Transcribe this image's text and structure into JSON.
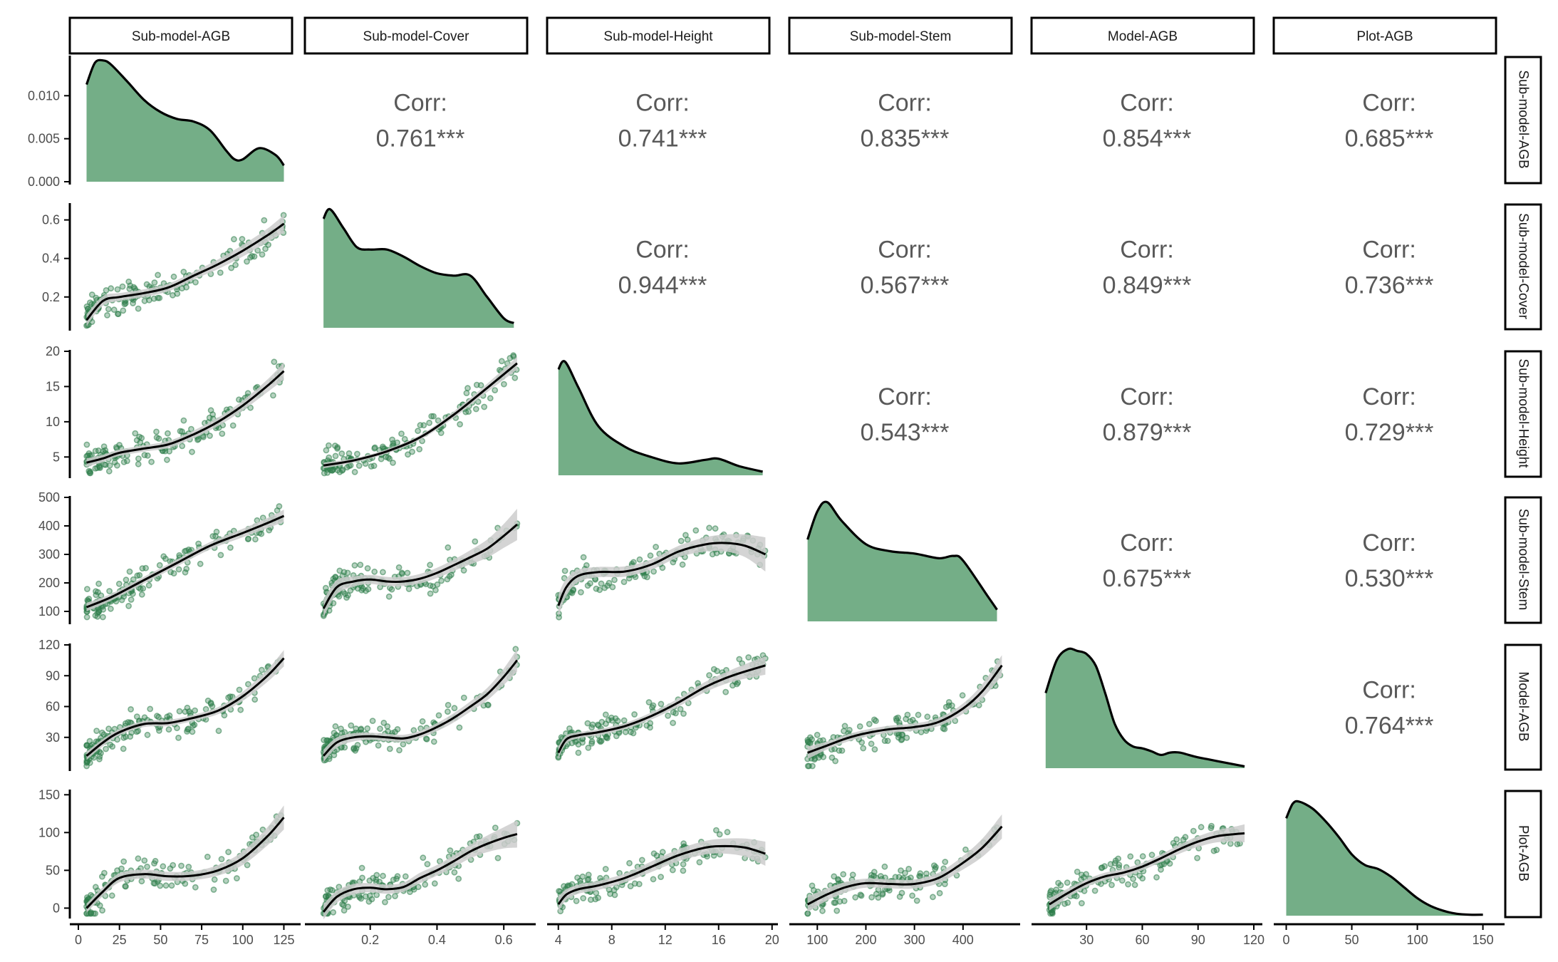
{
  "variables": [
    "Sub-model-AGB",
    "Sub-model-Cover",
    "Sub-model-Height",
    "Sub-model-Stem",
    "Model-AGB",
    "Plot-AGB"
  ],
  "colors": {
    "point": "#2e7d4a",
    "density_fill": "#74ae87",
    "line": "#000000",
    "ribbon": "#cccccc",
    "text": "#595959",
    "axis": "#000000"
  },
  "chart_data": {
    "type": "scatter",
    "layout": "pairs-matrix",
    "lower": "scatter with loess smooth and confidence band",
    "diagonal": "density",
    "upper": "correlation coefficient",
    "corr_label": "Corr:",
    "correlations": [
      {
        "row": "Sub-model-AGB",
        "col": "Sub-model-Cover",
        "text": "0.761***"
      },
      {
        "row": "Sub-model-AGB",
        "col": "Sub-model-Height",
        "text": "0.741***"
      },
      {
        "row": "Sub-model-AGB",
        "col": "Sub-model-Stem",
        "text": "0.835***"
      },
      {
        "row": "Sub-model-AGB",
        "col": "Model-AGB",
        "text": "0.854***"
      },
      {
        "row": "Sub-model-AGB",
        "col": "Plot-AGB",
        "text": "0.685***"
      },
      {
        "row": "Sub-model-Cover",
        "col": "Sub-model-Height",
        "text": "0.944***"
      },
      {
        "row": "Sub-model-Cover",
        "col": "Sub-model-Stem",
        "text": "0.567***"
      },
      {
        "row": "Sub-model-Cover",
        "col": "Model-AGB",
        "text": "0.849***"
      },
      {
        "row": "Sub-model-Cover",
        "col": "Plot-AGB",
        "text": "0.736***"
      },
      {
        "row": "Sub-model-Height",
        "col": "Sub-model-Stem",
        "text": "0.543***"
      },
      {
        "row": "Sub-model-Height",
        "col": "Model-AGB",
        "text": "0.879***"
      },
      {
        "row": "Sub-model-Height",
        "col": "Plot-AGB",
        "text": "0.729***"
      },
      {
        "row": "Sub-model-Stem",
        "col": "Model-AGB",
        "text": "0.675***"
      },
      {
        "row": "Sub-model-Stem",
        "col": "Plot-AGB",
        "text": "0.530***"
      },
      {
        "row": "Model-AGB",
        "col": "Plot-AGB",
        "text": "0.764***"
      }
    ],
    "x_axes": [
      {
        "variable": "Sub-model-AGB",
        "range": [
          0,
          130
        ],
        "ticks": [
          0,
          25,
          50,
          75,
          100,
          125
        ]
      },
      {
        "variable": "Sub-model-Cover",
        "range": [
          0.03,
          0.67
        ],
        "ticks": [
          0.2,
          0.4,
          0.6
        ]
      },
      {
        "variable": "Sub-model-Height",
        "range": [
          3.8,
          19.8
        ],
        "ticks": [
          4,
          8,
          12,
          16,
          20
        ]
      },
      {
        "variable": "Sub-model-Stem",
        "range": [
          60,
          500
        ],
        "ticks": [
          100,
          200,
          300,
          400
        ]
      },
      {
        "variable": "Model-AGB",
        "range": [
          5,
          120
        ],
        "ticks": [
          30,
          60,
          90,
          120
        ]
      },
      {
        "variable": "Plot-AGB",
        "range": [
          -3,
          160
        ],
        "ticks": [
          0,
          50,
          100,
          150
        ]
      }
    ],
    "y_axes": [
      {
        "variable": "Sub-model-AGB",
        "range": [
          0,
          0.0145
        ],
        "ticks": [
          0.0,
          0.005,
          0.01
        ],
        "tick_labels": [
          "0.000",
          "0.005",
          "0.010"
        ]
      },
      {
        "variable": "Sub-model-Cover",
        "range": [
          0.04,
          0.68
        ],
        "ticks": [
          0.2,
          0.4,
          0.6
        ]
      },
      {
        "variable": "Sub-model-Height",
        "range": [
          2.4,
          20
        ],
        "ticks": [
          5,
          10,
          15,
          20
        ]
      },
      {
        "variable": "Sub-model-Stem",
        "range": [
          65,
          500
        ],
        "ticks": [
          100,
          200,
          300,
          400,
          500
        ]
      },
      {
        "variable": "Model-AGB",
        "range": [
          0,
          120
        ],
        "ticks": [
          30,
          60,
          90,
          120
        ]
      },
      {
        "variable": "Plot-AGB",
        "range": [
          -10,
          155
        ],
        "ticks": [
          0,
          50,
          100,
          150
        ]
      }
    ],
    "densities": [
      {
        "variable": "Sub-model-AGB",
        "y_range": [
          0,
          0.0145
        ],
        "x": [
          5,
          10,
          15,
          20,
          30,
          40,
          50,
          60,
          70,
          80,
          90,
          95,
          100,
          110,
          120,
          125
        ],
        "y": [
          0.0113,
          0.0138,
          0.0141,
          0.0136,
          0.0116,
          0.0095,
          0.0081,
          0.0073,
          0.007,
          0.006,
          0.0036,
          0.0026,
          0.0026,
          0.0039,
          0.0031,
          0.0019
        ]
      },
      {
        "variable": "Sub-model-Cover",
        "y_range": [
          0,
          5.2
        ],
        "x": [
          0.06,
          0.08,
          0.12,
          0.16,
          0.2,
          0.25,
          0.3,
          0.35,
          0.4,
          0.45,
          0.5,
          0.55,
          0.6,
          0.63
        ],
        "y": [
          4.6,
          5.0,
          4.2,
          3.4,
          3.3,
          3.3,
          3.0,
          2.6,
          2.3,
          2.2,
          2.2,
          1.3,
          0.4,
          0.2
        ]
      },
      {
        "variable": "Sub-model-Height",
        "y_range": [
          0,
          0.24
        ],
        "x": [
          4,
          4.5,
          5.5,
          7,
          9,
          11,
          13,
          15,
          16,
          17.5,
          19.3
        ],
        "y": [
          0.205,
          0.22,
          0.17,
          0.095,
          0.055,
          0.035,
          0.023,
          0.03,
          0.032,
          0.018,
          0.007
        ]
      },
      {
        "variable": "Sub-model-Stem",
        "y_range": [
          0,
          0.0053
        ],
        "x": [
          80,
          100,
          120,
          150,
          200,
          250,
          300,
          350,
          380,
          400,
          450,
          470
        ],
        "y": [
          0.0035,
          0.0047,
          0.0051,
          0.0043,
          0.0033,
          0.003,
          0.0029,
          0.0027,
          0.0028,
          0.0026,
          0.0011,
          0.0005
        ]
      },
      {
        "variable": "Model-AGB",
        "y_range": [
          0,
          0.0205
        ],
        "x": [
          8,
          14,
          20,
          25,
          30,
          35,
          40,
          45,
          50,
          55,
          60,
          65,
          70,
          75,
          80,
          85,
          90,
          95,
          100,
          110,
          115
        ],
        "y": [
          0.0125,
          0.018,
          0.0198,
          0.0195,
          0.019,
          0.017,
          0.0125,
          0.0075,
          0.0048,
          0.0036,
          0.0033,
          0.0028,
          0.0022,
          0.0026,
          0.0026,
          0.0022,
          0.0018,
          0.0015,
          0.0012,
          0.0006,
          0.0003
        ]
      },
      {
        "variable": "Plot-AGB",
        "y_range": [
          0,
          0.0128
        ],
        "x": [
          0,
          5,
          10,
          20,
          30,
          40,
          50,
          60,
          70,
          80,
          90,
          100,
          110,
          120,
          130,
          140,
          150
        ],
        "y": [
          0.01,
          0.0115,
          0.0117,
          0.011,
          0.0097,
          0.0081,
          0.0063,
          0.0052,
          0.0048,
          0.004,
          0.0029,
          0.0018,
          0.001,
          0.0005,
          0.0002,
          0.0001,
          0.0001
        ]
      }
    ],
    "smooths": [
      {
        "row": "Sub-model-Cover",
        "col": "Sub-model-AGB",
        "x": [
          5,
          15,
          25,
          40,
          55,
          70,
          85,
          100,
          115,
          125
        ],
        "y": [
          0.08,
          0.18,
          0.2,
          0.22,
          0.25,
          0.31,
          0.37,
          0.44,
          0.52,
          0.58
        ],
        "se": [
          0.03,
          0.025,
          0.02,
          0.02,
          0.02,
          0.02,
          0.025,
          0.03,
          0.035,
          0.045
        ]
      },
      {
        "row": "Sub-model-Height",
        "col": "Sub-model-AGB",
        "x": [
          5,
          15,
          25,
          40,
          55,
          70,
          85,
          100,
          115,
          125
        ],
        "y": [
          4.2,
          4.8,
          5.6,
          6.2,
          6.8,
          8.2,
          10.0,
          12.3,
          15.1,
          17.2
        ],
        "se": [
          0.6,
          0.5,
          0.45,
          0.45,
          0.5,
          0.55,
          0.6,
          0.7,
          0.9,
          1.2
        ]
      },
      {
        "row": "Sub-model-Stem",
        "col": "Sub-model-AGB",
        "x": [
          5,
          20,
          40,
          60,
          80,
          100,
          115,
          125
        ],
        "y": [
          115,
          150,
          210,
          270,
          330,
          375,
          410,
          435
        ],
        "se": [
          15,
          12,
          12,
          12,
          13,
          15,
          18,
          22
        ]
      },
      {
        "row": "Model-AGB",
        "col": "Sub-model-AGB",
        "x": [
          5,
          15,
          25,
          40,
          55,
          70,
          85,
          100,
          115,
          125
        ],
        "y": [
          12,
          25,
          35,
          43,
          44,
          49,
          56,
          70,
          90,
          107
        ],
        "se": [
          4,
          3.5,
          3,
          3,
          3,
          3,
          3.5,
          4.5,
          6,
          8
        ]
      },
      {
        "row": "Plot-AGB",
        "col": "Sub-model-AGB",
        "x": [
          5,
          15,
          25,
          40,
          55,
          70,
          85,
          100,
          115,
          125
        ],
        "y": [
          0,
          22,
          40,
          45,
          42,
          43,
          50,
          66,
          95,
          120
        ],
        "se": [
          6,
          6,
          6,
          6,
          6,
          6,
          7,
          9,
          12,
          16
        ]
      },
      {
        "row": "Sub-model-Height",
        "col": "Sub-model-Cover",
        "x": [
          0.06,
          0.15,
          0.25,
          0.35,
          0.45,
          0.55,
          0.64
        ],
        "y": [
          3.8,
          4.5,
          5.8,
          7.8,
          11.0,
          14.8,
          18.3
        ],
        "se": [
          0.4,
          0.3,
          0.3,
          0.35,
          0.45,
          0.6,
          0.9
        ]
      },
      {
        "row": "Sub-model-Stem",
        "col": "Sub-model-Cover",
        "x": [
          0.06,
          0.1,
          0.15,
          0.2,
          0.25,
          0.3,
          0.35,
          0.4,
          0.45,
          0.5,
          0.55,
          0.6,
          0.64
        ],
        "y": [
          110,
          185,
          205,
          212,
          205,
          205,
          215,
          235,
          262,
          290,
          320,
          365,
          405
        ],
        "se": [
          30,
          25,
          18,
          16,
          16,
          16,
          17,
          18,
          20,
          25,
          32,
          42,
          55
        ]
      },
      {
        "row": "Model-AGB",
        "col": "Sub-model-Cover",
        "x": [
          0.06,
          0.1,
          0.15,
          0.2,
          0.25,
          0.3,
          0.35,
          0.4,
          0.45,
          0.5,
          0.55,
          0.6,
          0.64
        ],
        "y": [
          12,
          25,
          30,
          31,
          30,
          29,
          33,
          40,
          49,
          60,
          72,
          89,
          105
        ],
        "se": [
          6,
          5,
          4,
          3.5,
          3.5,
          3.5,
          3.5,
          4,
          4.5,
          5,
          6,
          8,
          11
        ]
      },
      {
        "row": "Plot-AGB",
        "col": "Sub-model-Cover",
        "x": [
          0.06,
          0.1,
          0.15,
          0.2,
          0.25,
          0.3,
          0.35,
          0.4,
          0.45,
          0.5,
          0.55,
          0.6,
          0.64
        ],
        "y": [
          -5,
          15,
          25,
          27,
          25,
          28,
          40,
          50,
          62,
          75,
          85,
          93,
          98
        ],
        "se": [
          10,
          8,
          7,
          6,
          6,
          6,
          7,
          7,
          8,
          9,
          11,
          14,
          18
        ]
      },
      {
        "row": "Sub-model-Stem",
        "col": "Sub-model-Height",
        "x": [
          4,
          4.6,
          5.5,
          7,
          9,
          11,
          13,
          15,
          16.5,
          18,
          19.5
        ],
        "y": [
          120,
          185,
          225,
          238,
          240,
          265,
          310,
          335,
          340,
          330,
          300
        ],
        "se": [
          40,
          30,
          22,
          18,
          18,
          18,
          20,
          25,
          30,
          40,
          60
        ]
      },
      {
        "row": "Model-AGB",
        "col": "Sub-model-Height",
        "x": [
          4,
          4.6,
          5.5,
          7,
          9,
          11,
          13,
          15,
          17,
          19.5
        ],
        "y": [
          15,
          28,
          32,
          35,
          41,
          51,
          64,
          79,
          90,
          100
        ],
        "se": [
          6,
          4,
          3,
          3,
          3,
          3.5,
          4,
          5,
          6,
          9
        ]
      },
      {
        "row": "Plot-AGB",
        "col": "Sub-model-Height",
        "x": [
          4,
          4.6,
          5.5,
          7,
          9,
          11,
          13,
          15,
          16.5,
          18,
          19.5
        ],
        "y": [
          5,
          18,
          25,
          30,
          40,
          55,
          70,
          80,
          82,
          80,
          72
        ],
        "se": [
          10,
          7,
          6,
          6,
          6,
          7,
          8,
          9,
          10,
          12,
          16
        ]
      },
      {
        "row": "Model-AGB",
        "col": "Sub-model-Stem",
        "x": [
          80,
          120,
          160,
          200,
          250,
          300,
          350,
          400,
          440,
          480
        ],
        "y": [
          15,
          22,
          29,
          34,
          38,
          40,
          45,
          58,
          75,
          100
        ],
        "se": [
          6,
          4,
          3.5,
          3.5,
          3.5,
          3.5,
          4,
          5,
          7,
          10
        ]
      },
      {
        "row": "Plot-AGB",
        "col": "Sub-model-Stem",
        "x": [
          80,
          120,
          160,
          200,
          250,
          300,
          350,
          400,
          440,
          480
        ],
        "y": [
          5,
          18,
          28,
          33,
          32,
          32,
          40,
          60,
          80,
          108
        ],
        "se": [
          10,
          8,
          7,
          6,
          6,
          6,
          7,
          9,
          12,
          16
        ]
      },
      {
        "row": "Plot-AGB",
        "col": "Model-AGB",
        "x": [
          10,
          20,
          30,
          40,
          50,
          60,
          70,
          80,
          90,
          100,
          110,
          115
        ],
        "y": [
          5,
          20,
          33,
          42,
          47,
          55,
          66,
          78,
          88,
          95,
          98,
          99
        ],
        "se": [
          8,
          6,
          5,
          5,
          5,
          5,
          5,
          6,
          7,
          8,
          10,
          12
        ]
      }
    ],
    "scatter_note": "about 150 observations per panel; every scatter panel shows pairs of the six variables"
  }
}
